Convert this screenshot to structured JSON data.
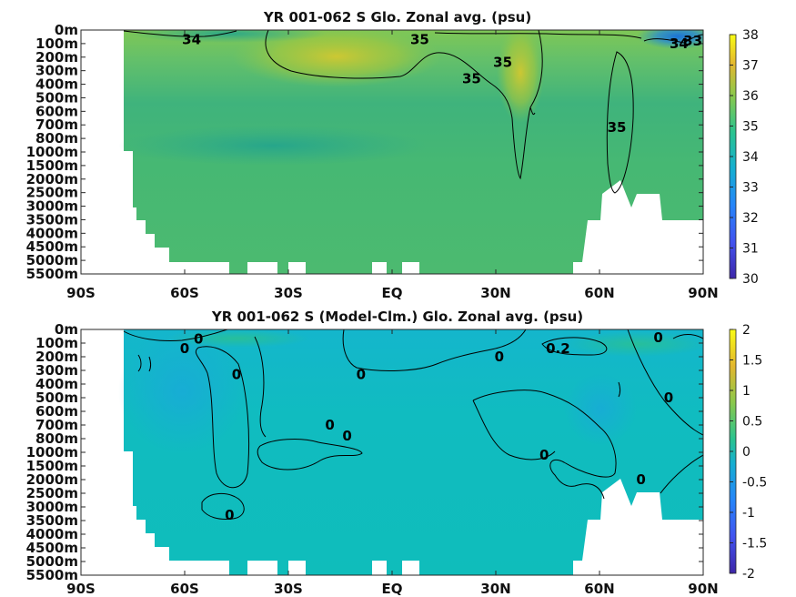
{
  "chart_data": [
    {
      "type": "heatmap",
      "title": "YR 001-062 S Glo. Zonal avg. (psu)",
      "x_ticks": [
        "90S",
        "60S",
        "30S",
        "EQ",
        "30N",
        "60N",
        "90N"
      ],
      "x_values": [
        -90,
        -60,
        -30,
        0,
        30,
        60,
        90
      ],
      "y_ticks": [
        "0m",
        "100m",
        "200m",
        "300m",
        "400m",
        "500m",
        "600m",
        "700m",
        "800m",
        "1000m",
        "1500m",
        "2000m",
        "2500m",
        "3000m",
        "3500m",
        "4000m",
        "4500m",
        "5000m",
        "5500m"
      ],
      "colorbar": {
        "min": 30,
        "max": 38,
        "ticks": [
          "30",
          "31",
          "32",
          "33",
          "34",
          "35",
          "36",
          "37",
          "38"
        ]
      },
      "contour_labels": [
        {
          "text": "34",
          "lat": -58,
          "depth_index": 0.7
        },
        {
          "text": "35",
          "lat": 8,
          "depth_index": 0.7
        },
        {
          "text": "35",
          "lat": 32,
          "depth_index": 2.4
        },
        {
          "text": "35",
          "lat": 23,
          "depth_index": 3.6
        },
        {
          "text": "35",
          "lat": 65,
          "depth_index": 7.2
        },
        {
          "text": "34",
          "lat": 83,
          "depth_index": 1.0
        },
        {
          "text": "33",
          "lat": 87,
          "depth_index": 0.8
        }
      ]
    },
    {
      "type": "heatmap",
      "title": "YR 001-062 S (Model-Clm.) Glo. Zonal avg. (psu)",
      "x_ticks": [
        "90S",
        "60S",
        "30S",
        "EQ",
        "30N",
        "60N",
        "90N"
      ],
      "x_values": [
        -90,
        -60,
        -30,
        0,
        30,
        60,
        90
      ],
      "y_ticks": [
        "0m",
        "100m",
        "200m",
        "300m",
        "400m",
        "500m",
        "600m",
        "700m",
        "800m",
        "1000m",
        "1500m",
        "2000m",
        "2500m",
        "3000m",
        "3500m",
        "4000m",
        "4500m",
        "5000m",
        "5500m"
      ],
      "colorbar": {
        "min": -2,
        "max": 2,
        "ticks": [
          "-2",
          "-1.5",
          "-1",
          "-0.5",
          "0",
          "0.5",
          "1",
          "1.5",
          "2"
        ]
      },
      "contour_labels": [
        {
          "text": "0",
          "lat": -56,
          "depth_index": 0.7
        },
        {
          "text": "0",
          "lat": -60,
          "depth_index": 1.4
        },
        {
          "text": "0",
          "lat": -45,
          "depth_index": 3.3
        },
        {
          "text": "0",
          "lat": -9,
          "depth_index": 3.3
        },
        {
          "text": "0",
          "lat": 31,
          "depth_index": 2.0
        },
        {
          "text": "0.2",
          "lat": 48,
          "depth_index": 1.4
        },
        {
          "text": "0",
          "lat": 77,
          "depth_index": 0.6
        },
        {
          "text": "0",
          "lat": 80,
          "depth_index": 5.0
        },
        {
          "text": "0",
          "lat": -18,
          "depth_index": 7.0
        },
        {
          "text": "0",
          "lat": -13,
          "depth_index": 7.8
        },
        {
          "text": "0",
          "lat": 44,
          "depth_index": 9.2
        },
        {
          "text": "0",
          "lat": 72,
          "depth_index": 11.0
        },
        {
          "text": "0",
          "lat": -47,
          "depth_index": 13.6
        }
      ]
    }
  ]
}
